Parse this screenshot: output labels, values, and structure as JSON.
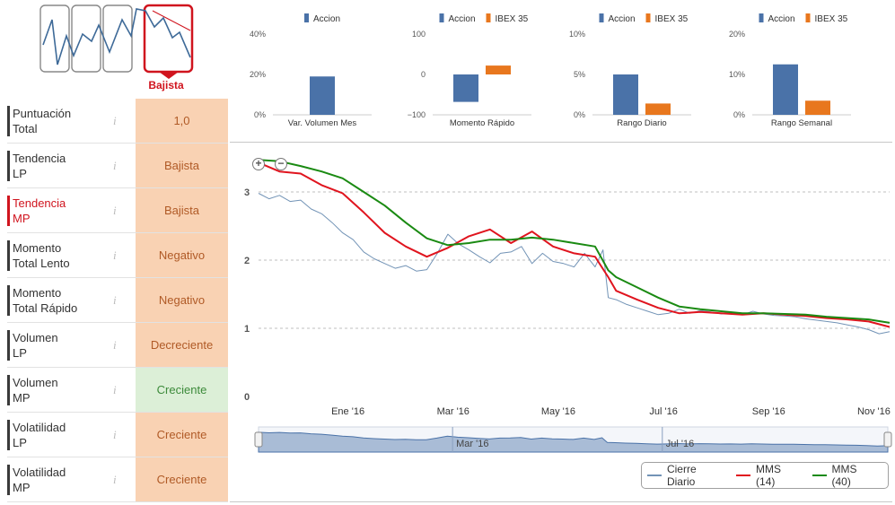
{
  "trend": {
    "label": "Bajista"
  },
  "ratings": [
    {
      "label": "Puntuación Total",
      "line1": "Puntuación",
      "line2": "Total",
      "value": "1,0",
      "status": "orange",
      "highlight": false
    },
    {
      "label": "Tendencia LP",
      "line1": "Tendencia",
      "line2": "LP",
      "value": "Bajista",
      "status": "orange",
      "highlight": false
    },
    {
      "label": "Tendencia MP",
      "line1": "Tendencia",
      "line2": "MP",
      "value": "Bajista",
      "status": "orange",
      "highlight": true
    },
    {
      "label": "Momento Total Lento",
      "line1": "Momento",
      "line2": "Total Lento",
      "value": "Negativo",
      "status": "orange",
      "highlight": false
    },
    {
      "label": "Momento Total Rápido",
      "line1": "Momento",
      "line2": "Total Rápido",
      "value": "Negativo",
      "status": "orange",
      "highlight": false
    },
    {
      "label": "Volumen LP",
      "line1": "Volumen",
      "line2": "LP",
      "value": "Decreciente",
      "status": "orange",
      "highlight": false
    },
    {
      "label": "Volumen MP",
      "line1": "Volumen",
      "line2": "MP",
      "value": "Creciente",
      "status": "green",
      "highlight": false
    },
    {
      "label": "Volatilidad LP",
      "line1": "Volatilidad",
      "line2": "LP",
      "value": "Creciente",
      "status": "orange",
      "highlight": false
    },
    {
      "label": "Volatilidad MP",
      "line1": "Volatilidad",
      "line2": "MP",
      "value": "Creciente",
      "status": "orange",
      "highlight": false
    }
  ],
  "colors": {
    "accion": "#4a72a8",
    "ibex": "#e8771e",
    "cierre": "#7293b6",
    "mms14": "#e0141e",
    "mms40": "#1a8a12",
    "navigator": "#a9bcd6"
  },
  "chart_data": [
    {
      "type": "bar",
      "title": "Var. Volumen Mes",
      "legend": [
        "Accion"
      ],
      "series": [
        {
          "name": "Accion",
          "values": [
            19
          ]
        }
      ],
      "yticks": [
        "40%",
        "20%",
        "0%"
      ],
      "ylim": [
        0,
        40
      ]
    },
    {
      "type": "bar",
      "title": "Momento Rápido",
      "legend": [
        "Accion",
        "IBEX 35"
      ],
      "series": [
        {
          "name": "Accion",
          "values": [
            -68
          ]
        },
        {
          "name": "IBEX 35",
          "values": [
            22
          ]
        }
      ],
      "yticks": [
        "100",
        "0",
        "−100"
      ],
      "ylim": [
        -100,
        100
      ]
    },
    {
      "type": "bar",
      "title": "Rango Diario",
      "legend": [
        "Accion",
        "IBEX 35"
      ],
      "series": [
        {
          "name": "Accion",
          "values": [
            5.0
          ]
        },
        {
          "name": "IBEX 35",
          "values": [
            1.4
          ]
        }
      ],
      "yticks": [
        "10%",
        "5%",
        "0%"
      ],
      "ylim": [
        0,
        10
      ]
    },
    {
      "type": "bar",
      "title": "Rango Semanal",
      "legend": [
        "Accion",
        "IBEX 35"
      ],
      "series": [
        {
          "name": "Accion",
          "values": [
            12.5
          ]
        },
        {
          "name": "IBEX 35",
          "values": [
            3.5
          ]
        }
      ],
      "yticks": [
        "20%",
        "10%",
        "0%"
      ],
      "ylim": [
        0,
        20
      ]
    },
    {
      "type": "line",
      "title": "",
      "xlabels": [
        "Ene '16",
        "Mar '16",
        "May '16",
        "Jul '16",
        "Sep '16",
        "Nov '16"
      ],
      "xlabel_pos": [
        1.0,
        3.0,
        5.0,
        7.0,
        9.0,
        11.0
      ],
      "yticks": [
        "3",
        "2",
        "1",
        "0"
      ],
      "ylim": [
        0,
        3.5
      ],
      "xlim": [
        -0.7,
        11.3
      ],
      "navigator_labels": [
        "Mar '16",
        "Jul '16"
      ],
      "navigator_label_pos": [
        3.0,
        7.0
      ],
      "legend": [
        "Cierre Diario",
        "MMS (14)",
        "MMS (40)"
      ],
      "series": [
        {
          "name": "Cierre Diario",
          "x": [
            -0.7,
            -0.5,
            -0.3,
            -0.1,
            0.1,
            0.3,
            0.5,
            0.7,
            0.9,
            1.1,
            1.3,
            1.5,
            1.7,
            1.9,
            2.1,
            2.3,
            2.5,
            2.7,
            2.9,
            3.1,
            3.3,
            3.5,
            3.7,
            3.9,
            4.1,
            4.3,
            4.5,
            4.7,
            4.9,
            5.1,
            5.3,
            5.5,
            5.7,
            5.85,
            5.95,
            6.1,
            6.3,
            6.5,
            6.7,
            6.9,
            7.1,
            7.3,
            7.5,
            7.7,
            7.9,
            8.1,
            8.3,
            8.5,
            8.7,
            8.9,
            9.1,
            9.3,
            9.5,
            9.7,
            9.9,
            10.1,
            10.3,
            10.5,
            10.7,
            10.9,
            11.1,
            11.3
          ],
          "y": [
            2.98,
            2.9,
            2.95,
            2.86,
            2.88,
            2.75,
            2.68,
            2.55,
            2.4,
            2.3,
            2.12,
            2.02,
            1.95,
            1.88,
            1.92,
            1.84,
            1.86,
            2.1,
            2.38,
            2.24,
            2.15,
            2.05,
            1.96,
            2.1,
            2.12,
            2.2,
            1.95,
            2.1,
            1.98,
            1.95,
            1.9,
            2.1,
            1.9,
            2.15,
            1.45,
            1.42,
            1.35,
            1.3,
            1.25,
            1.2,
            1.22,
            1.28,
            1.22,
            1.26,
            1.24,
            1.21,
            1.23,
            1.2,
            1.25,
            1.21,
            1.19,
            1.18,
            1.17,
            1.14,
            1.12,
            1.1,
            1.08,
            1.05,
            1.02,
            0.98,
            0.92,
            0.95
          ]
        },
        {
          "name": "MMS (14)",
          "x": [
            -0.7,
            -0.3,
            0.1,
            0.5,
            0.9,
            1.3,
            1.7,
            2.1,
            2.5,
            2.9,
            3.3,
            3.7,
            4.1,
            4.5,
            4.9,
            5.3,
            5.7,
            5.95,
            6.1,
            6.5,
            6.9,
            7.3,
            7.7,
            8.1,
            8.5,
            8.9,
            9.3,
            9.7,
            10.1,
            10.5,
            10.9,
            11.3
          ],
          "y": [
            3.43,
            3.3,
            3.27,
            3.1,
            2.98,
            2.7,
            2.4,
            2.2,
            2.05,
            2.18,
            2.35,
            2.45,
            2.25,
            2.42,
            2.2,
            2.1,
            2.05,
            1.75,
            1.55,
            1.42,
            1.3,
            1.22,
            1.24,
            1.22,
            1.2,
            1.22,
            1.2,
            1.18,
            1.15,
            1.13,
            1.1,
            1.02
          ]
        },
        {
          "name": "MMS (40)",
          "x": [
            -0.7,
            -0.3,
            0.1,
            0.5,
            0.9,
            1.3,
            1.7,
            2.1,
            2.5,
            2.9,
            3.3,
            3.7,
            4.1,
            4.5,
            4.9,
            5.3,
            5.7,
            5.95,
            6.1,
            6.5,
            6.9,
            7.3,
            7.7,
            8.1,
            8.5,
            8.9,
            9.3,
            9.7,
            10.1,
            10.5,
            10.9,
            11.3
          ],
          "y": [
            3.47,
            3.45,
            3.38,
            3.3,
            3.2,
            3.0,
            2.8,
            2.55,
            2.32,
            2.22,
            2.25,
            2.3,
            2.3,
            2.33,
            2.3,
            2.25,
            2.2,
            1.85,
            1.75,
            1.6,
            1.45,
            1.32,
            1.28,
            1.25,
            1.22,
            1.22,
            1.21,
            1.2,
            1.17,
            1.15,
            1.13,
            1.08
          ]
        }
      ]
    }
  ],
  "mini_legend_ibex": "IBEX 35",
  "mini_legend_accion": "Accion"
}
